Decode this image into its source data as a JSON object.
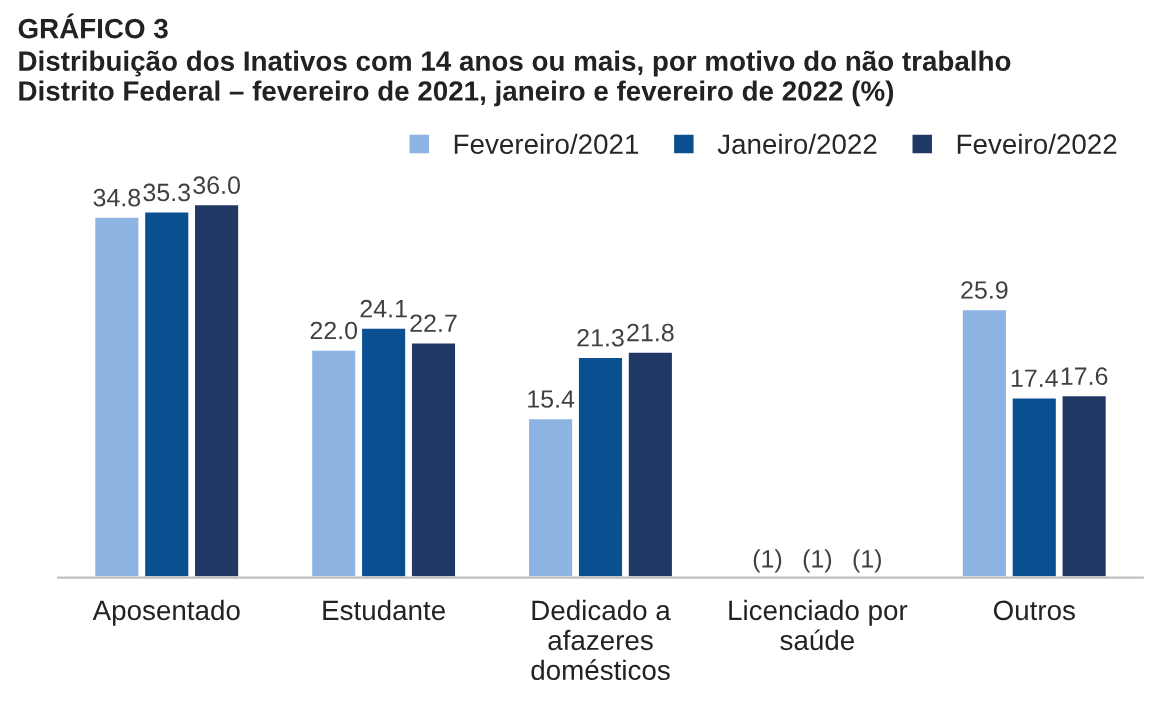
{
  "chart_data": {
    "type": "bar",
    "title": "GRÁFICO 3",
    "subtitle": "Distribuição dos Inativos com 14 anos ou mais, por motivo do não trabalho\nDistrito Federal – fevereiro de 2021, janeiro e fevereiro de 2022 (%)",
    "categories": [
      "Aposentado",
      "Estudante",
      "Dedicado a\nafazeres\ndomésticos",
      "Licenciado por\nsaúde",
      "Outros"
    ],
    "series": [
      {
        "name": "Fevereiro/2021",
        "color": "#8db3e2",
        "values": [
          34.8,
          22.0,
          15.4,
          null,
          25.9
        ],
        "value_labels": [
          "34.8",
          "22.0",
          "15.4",
          "(1)",
          "25.9"
        ]
      },
      {
        "name": "Janeiro/2022",
        "color": "#0a4f8f",
        "values": [
          35.3,
          24.1,
          21.3,
          null,
          17.4
        ],
        "value_labels": [
          "35.3",
          "24.1",
          "21.3",
          "(1)",
          "17.4"
        ]
      },
      {
        "name": "Feveiro/2022",
        "color": "#1f3864",
        "values": [
          36.0,
          22.7,
          21.8,
          null,
          17.6
        ],
        "value_labels": [
          "36.0",
          "22.7",
          "21.8",
          "(1)",
          "17.6"
        ]
      }
    ],
    "legend": "top right",
    "grid": false
  }
}
